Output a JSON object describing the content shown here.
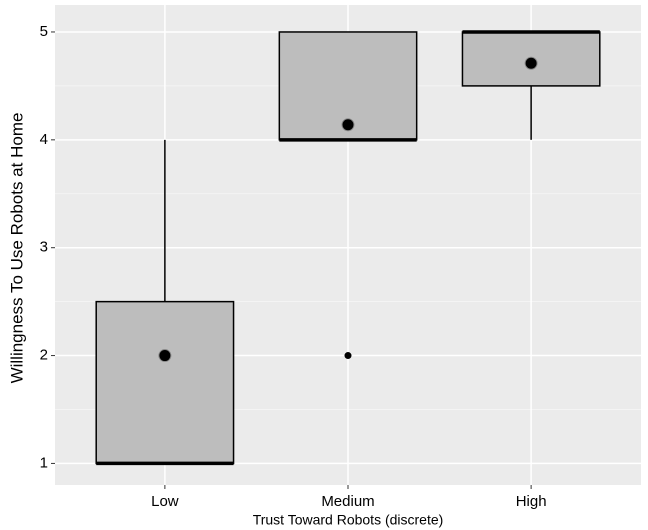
{
  "chart_data": {
    "type": "box",
    "x_label": "Trust Toward Robots (discrete)",
    "y_label": "Willingness To Use Robots at Home",
    "categories": [
      "Low",
      "Medium",
      "High"
    ],
    "whisker_low": [
      1,
      4,
      4
    ],
    "q1": [
      1,
      4,
      4.5
    ],
    "median": [
      1,
      4,
      5
    ],
    "q3": [
      2.5,
      5,
      5
    ],
    "whisker_high": [
      4,
      5,
      5
    ],
    "mean": [
      2,
      4.14,
      4.71
    ],
    "outliers": [
      [],
      [
        2
      ],
      []
    ],
    "color": "#bdbdbd",
    "ylim": [
      0.8,
      5.25
    ],
    "yticks": [
      1,
      2,
      3,
      4,
      5
    ],
    "y_minor_ticks": [
      1.5,
      2.5,
      3.5,
      4.5
    ],
    "grid": true
  }
}
